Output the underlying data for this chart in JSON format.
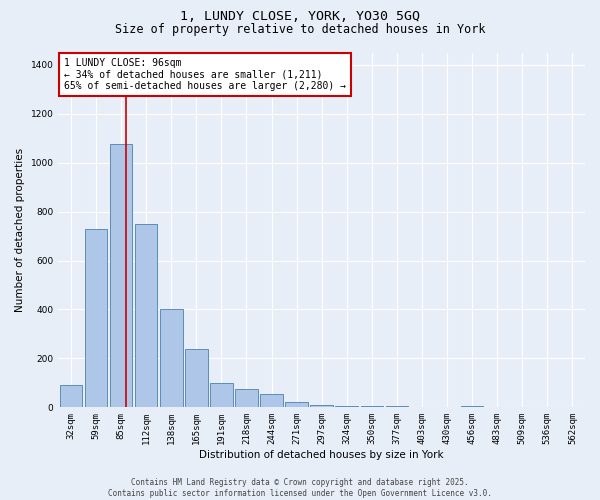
{
  "title_line1": "1, LUNDY CLOSE, YORK, YO30 5GQ",
  "title_line2": "Size of property relative to detached houses in York",
  "xlabel": "Distribution of detached houses by size in York",
  "ylabel": "Number of detached properties",
  "categories": [
    "32sqm",
    "59sqm",
    "85sqm",
    "112sqm",
    "138sqm",
    "165sqm",
    "191sqm",
    "218sqm",
    "244sqm",
    "271sqm",
    "297sqm",
    "324sqm",
    "350sqm",
    "377sqm",
    "403sqm",
    "430sqm",
    "456sqm",
    "483sqm",
    "509sqm",
    "536sqm",
    "562sqm"
  ],
  "values": [
    90,
    730,
    1075,
    750,
    400,
    240,
    100,
    75,
    55,
    20,
    10,
    5,
    5,
    5,
    0,
    0,
    5,
    0,
    0,
    0,
    0
  ],
  "bar_color": "#aec6e8",
  "bar_edge_color": "#5b8db8",
  "vline_color": "#cc0000",
  "vline_pos": 2.2,
  "annotation_text_line1": "1 LUNDY CLOSE: 96sqm",
  "annotation_text_line2": "← 34% of detached houses are smaller (1,211)",
  "annotation_text_line3": "65% of semi-detached houses are larger (2,280) →",
  "annotation_box_color": "#cc0000",
  "annotation_fill": "#ffffff",
  "ylim": [
    0,
    1450
  ],
  "yticks": [
    0,
    200,
    400,
    600,
    800,
    1000,
    1200,
    1400
  ],
  "background_color": "#e8eef8",
  "grid_color": "#ffffff",
  "footer_text": "Contains HM Land Registry data © Crown copyright and database right 2025.\nContains public sector information licensed under the Open Government Licence v3.0.",
  "title_fontsize": 9.5,
  "subtitle_fontsize": 8.5,
  "tick_label_fontsize": 6.5,
  "axis_label_fontsize": 7.5,
  "annotation_fontsize": 7.0,
  "footer_fontsize": 5.5
}
